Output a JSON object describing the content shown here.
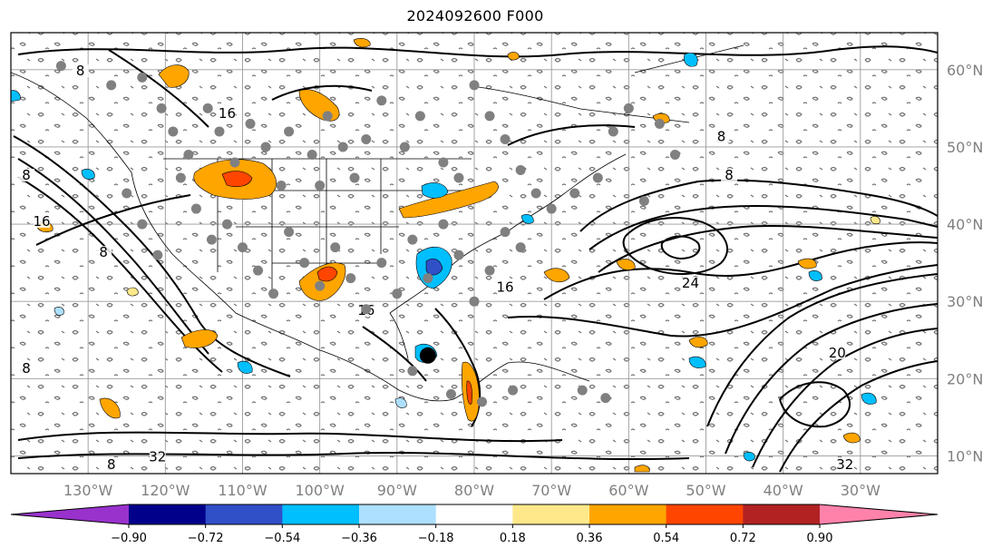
{
  "title": "2024092600 F000",
  "longitude_labels": [
    "130°W",
    "120°W",
    "110°W",
    "100°W",
    "90°W",
    "80°W",
    "70°W",
    "60°W",
    "50°W",
    "40°W",
    "30°W"
  ],
  "latitude_labels": [
    "60°N",
    "50°N",
    "40°N",
    "30°N",
    "20°N",
    "10°N"
  ],
  "colorbar": {
    "ticks": [
      "−0.90",
      "−0.72",
      "−0.54",
      "−0.36",
      "−0.18",
      "0.18",
      "0.36",
      "0.54",
      "0.72",
      "0.90"
    ],
    "colors": [
      "#9932CC",
      "#00008B",
      "#3050C8",
      "#00BFFF",
      "#ADDFFF",
      "#FFFFFF",
      "#FFE88A",
      "#FFA500",
      "#FF4500",
      "#B22222",
      "#FF82AB"
    ]
  },
  "contour_labels": [
    {
      "text": "8",
      "lon": -131,
      "lat": 59.5
    },
    {
      "text": "16",
      "lon": -112,
      "lat": 54
    },
    {
      "text": "8",
      "lon": -138,
      "lat": 46
    },
    {
      "text": "16",
      "lon": -136,
      "lat": 40
    },
    {
      "text": "8",
      "lon": -128,
      "lat": 36
    },
    {
      "text": "8",
      "lon": -48,
      "lat": 51
    },
    {
      "text": "8",
      "lon": -47,
      "lat": 46
    },
    {
      "text": "16",
      "lon": -76,
      "lat": 31.5
    },
    {
      "text": "16",
      "lon": -94,
      "lat": 28.5
    },
    {
      "text": "24",
      "lon": -52,
      "lat": 32
    },
    {
      "text": "8",
      "lon": -138,
      "lat": 21
    },
    {
      "text": "32",
      "lon": -121,
      "lat": 9.5
    },
    {
      "text": "8",
      "lon": -127,
      "lat": 8.5
    },
    {
      "text": "32",
      "lon": -32,
      "lat": 8.5
    },
    {
      "text": "20",
      "lon": -33,
      "lat": 23
    }
  ],
  "station_markers": [
    [
      -133.5,
      60.5
    ],
    [
      -127,
      58
    ],
    [
      -123,
      59
    ],
    [
      -120.5,
      55
    ],
    [
      -119,
      52
    ],
    [
      -117,
      49
    ],
    [
      -114.5,
      55
    ],
    [
      -113,
      52
    ],
    [
      -111,
      48
    ],
    [
      -109,
      53
    ],
    [
      -107,
      50
    ],
    [
      -105,
      45
    ],
    [
      -104,
      52
    ],
    [
      -101,
      49
    ],
    [
      -100,
      45
    ],
    [
      -99,
      54
    ],
    [
      -97,
      50
    ],
    [
      -95.5,
      46
    ],
    [
      -94,
      51
    ],
    [
      -92,
      56
    ],
    [
      -89,
      50
    ],
    [
      -87,
      54
    ],
    [
      -84,
      48
    ],
    [
      -82,
      46
    ],
    [
      -80,
      58
    ],
    [
      -78,
      54
    ],
    [
      -76,
      51
    ],
    [
      -74,
      47
    ],
    [
      -72,
      44
    ],
    [
      -70,
      42
    ],
    [
      -67,
      44
    ],
    [
      -64,
      46
    ],
    [
      -62,
      52
    ],
    [
      -60,
      55
    ],
    [
      -58,
      43
    ],
    [
      -56,
      53
    ],
    [
      -54,
      49
    ],
    [
      -112,
      40
    ],
    [
      -110,
      37
    ],
    [
      -108,
      34
    ],
    [
      -106,
      31
    ],
    [
      -104,
      39
    ],
    [
      -102,
      35
    ],
    [
      -100,
      32
    ],
    [
      -98,
      37
    ],
    [
      -96,
      33
    ],
    [
      -94,
      29
    ],
    [
      -92,
      35
    ],
    [
      -90,
      31
    ],
    [
      -88,
      38
    ],
    [
      -86,
      33
    ],
    [
      -84,
      40
    ],
    [
      -82,
      36
    ],
    [
      -80,
      30
    ],
    [
      -78,
      34
    ],
    [
      -76,
      39
    ],
    [
      -74,
      37
    ],
    [
      -118,
      46
    ],
    [
      -116,
      42
    ],
    [
      -114,
      38
    ],
    [
      -125,
      44
    ],
    [
      -123,
      40
    ],
    [
      -121,
      36
    ],
    [
      -88,
      21
    ],
    [
      -83,
      18
    ],
    [
      -79,
      17
    ],
    [
      -75,
      18.5
    ],
    [
      -66,
      18.5
    ],
    [
      -63,
      17.5
    ]
  ],
  "storm_marker": {
    "lon": -86,
    "lat": 23
  }
}
